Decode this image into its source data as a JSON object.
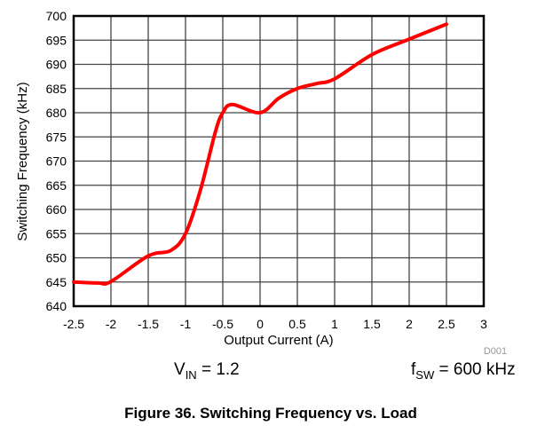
{
  "chart_data": {
    "type": "line",
    "title": "Figure 36. Switching Frequency vs. Load",
    "xlabel": "Output Current (A)",
    "ylabel": "Switching Frequency (kHz)",
    "xlim": [
      -2.5,
      3
    ],
    "ylim": [
      640,
      700
    ],
    "xticks": [
      "-2.5",
      "-2",
      "-1.5",
      "-1",
      "-0.5",
      "0",
      "0.5",
      "1",
      "1.5",
      "2",
      "2.5",
      "3"
    ],
    "yticks": [
      "640",
      "645",
      "650",
      "655",
      "660",
      "665",
      "670",
      "675",
      "680",
      "685",
      "690",
      "695",
      "700"
    ],
    "grid": true,
    "series": [
      {
        "name": "Switching Frequency",
        "color": "#ff0000",
        "x": [
          -2.5,
          -2.17,
          -2,
          -1.5,
          -1.2,
          -1,
          -0.8,
          -0.6,
          -0.5,
          -0.37,
          0,
          0.25,
          0.5,
          0.75,
          1,
          1.5,
          2,
          2.5
        ],
        "y": [
          645,
          644.8,
          645.1,
          650.4,
          651.5,
          655,
          664,
          676,
          680,
          681.7,
          680,
          683,
          685,
          686,
          687,
          692,
          695.2,
          698.3
        ]
      }
    ],
    "annotations": {
      "vin_prefix": "V",
      "vin_sub": "IN",
      "vin_value": " = 1.2",
      "fsw_prefix": "f",
      "fsw_sub": "SW",
      "fsw_value": " = 600 kHz",
      "doc_id": "D001"
    }
  }
}
